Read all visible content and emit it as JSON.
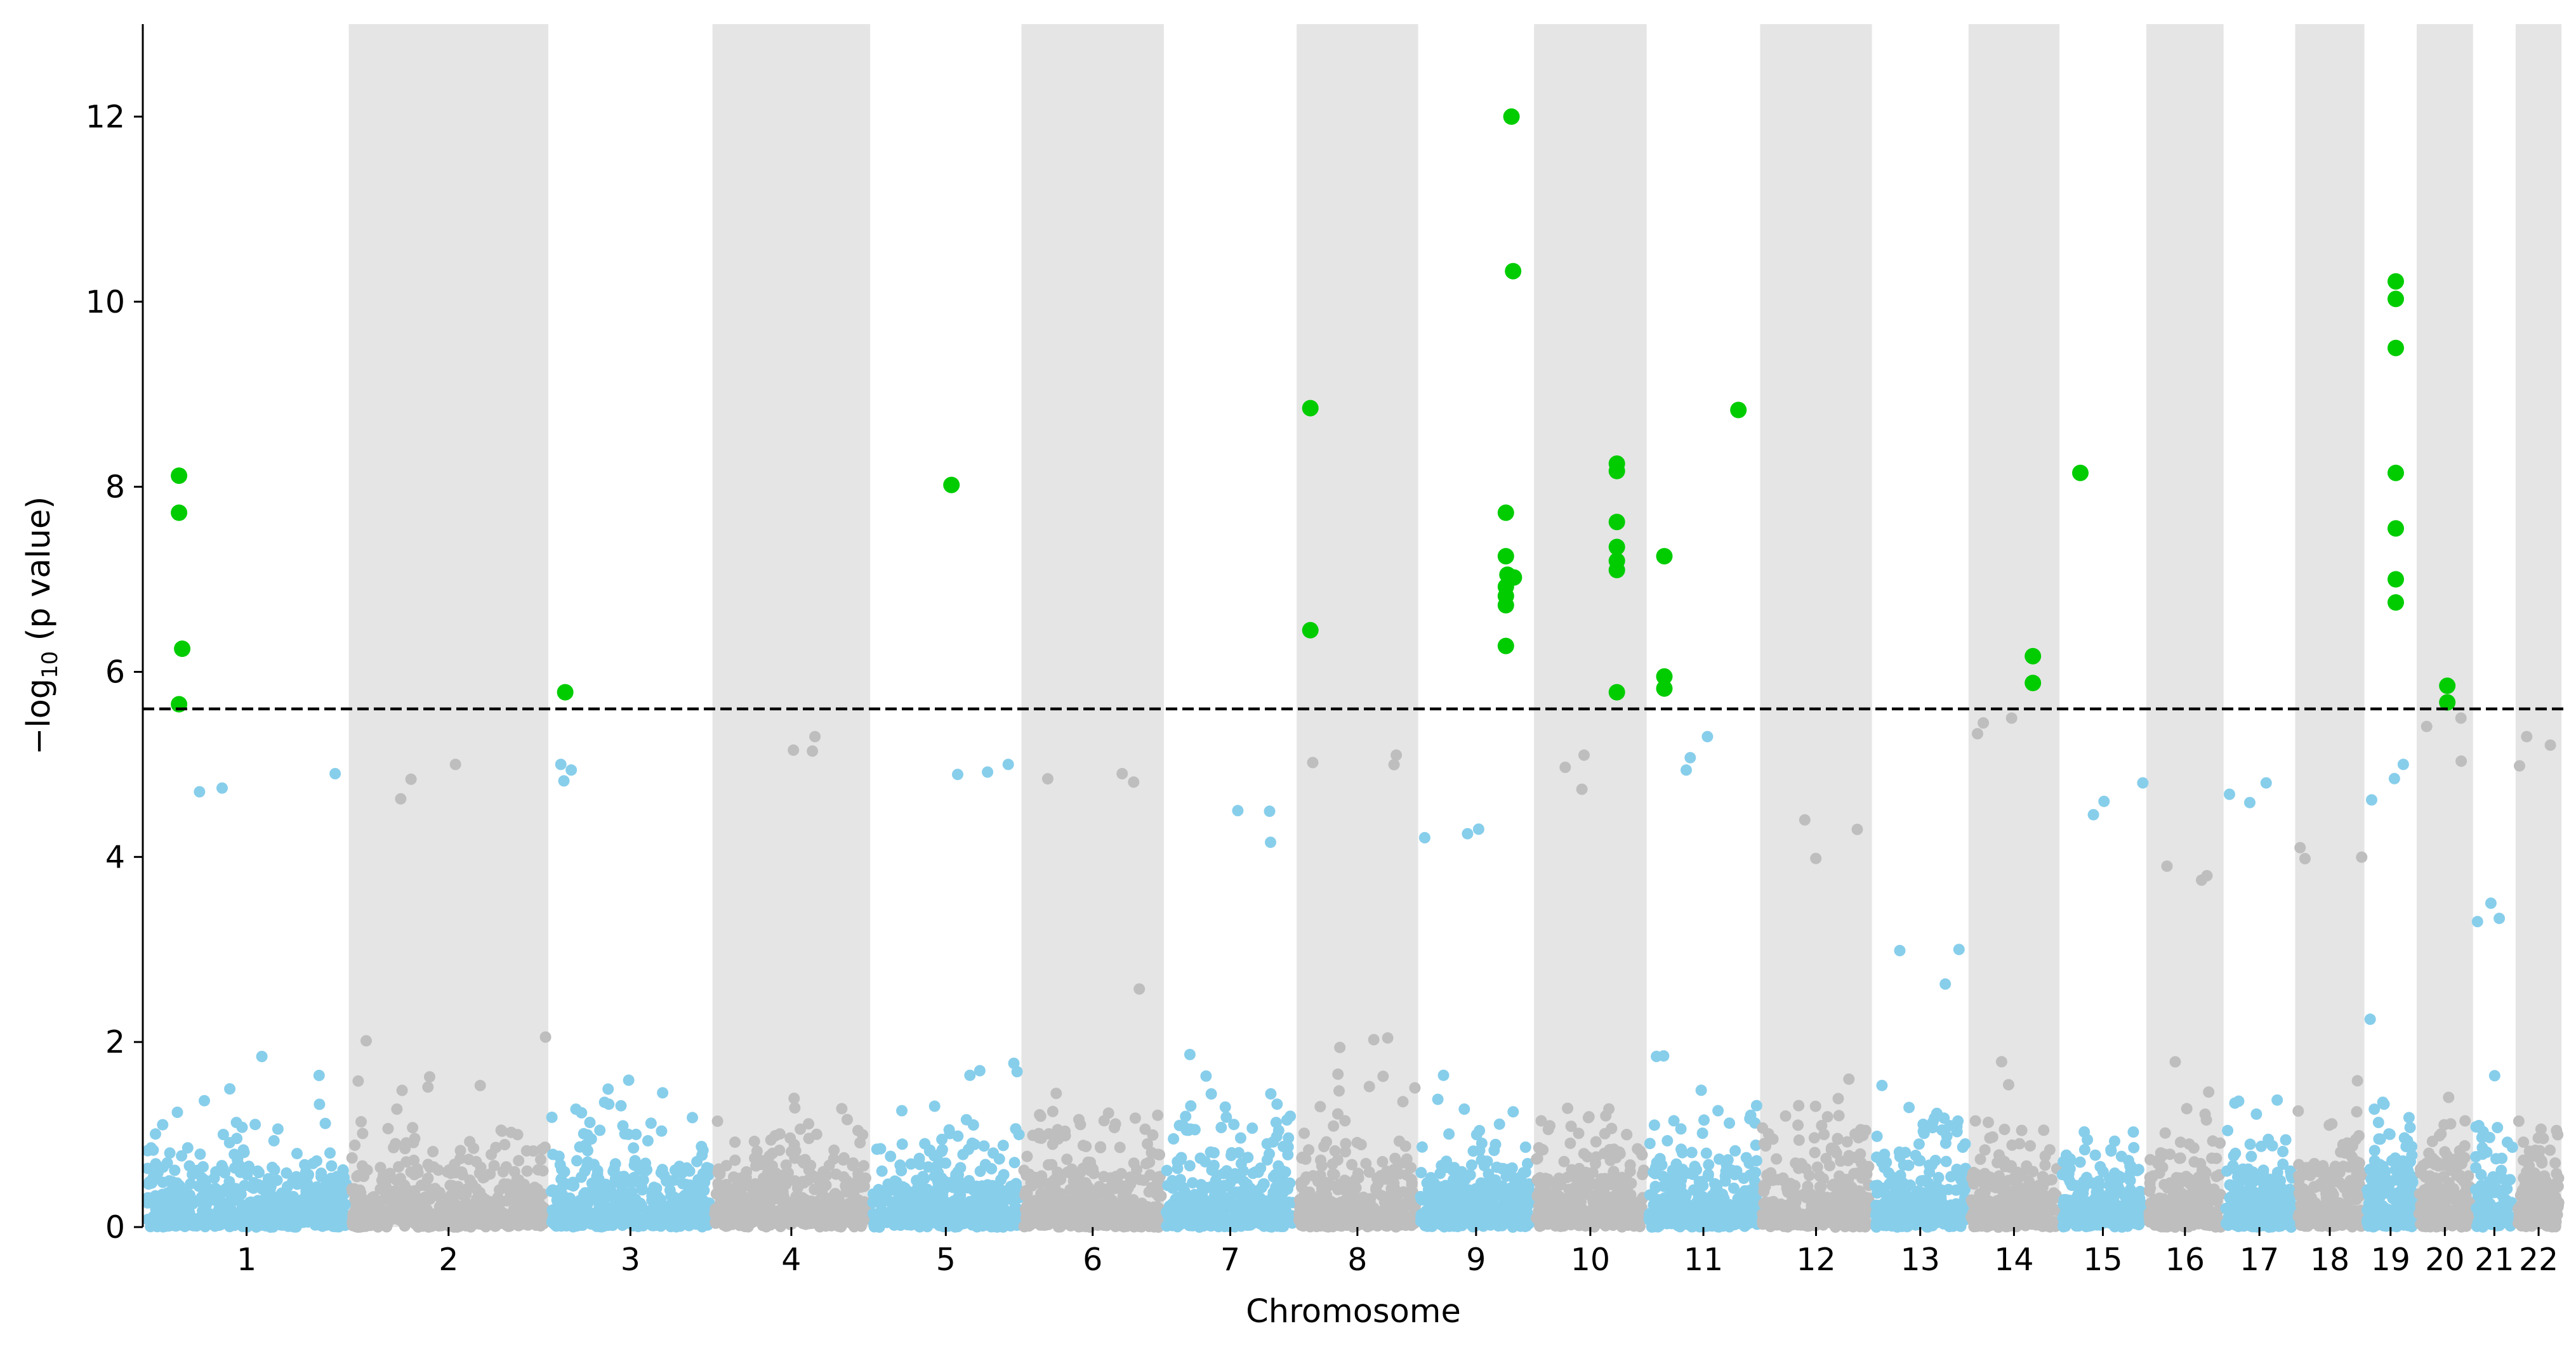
{
  "chart_data": {
    "type": "scatter",
    "subtype": "manhattan",
    "title": "",
    "xlabel": "Chromosome",
    "ylabel_main": "−log",
    "ylabel_sub": "10",
    "ylabel_tail": " (p value)",
    "ylim": [
      0,
      13
    ],
    "yticks": [
      0,
      2,
      4,
      6,
      8,
      10,
      12
    ],
    "threshold": 5.6,
    "grid": false,
    "legend": "none",
    "colors": {
      "odd_chromosome": "#87ceeb",
      "even_chromosome": "#bebebe",
      "shade": "#e5e5e5",
      "significant": "#00cc00",
      "threshold_line": "#000000"
    },
    "chromosomes": [
      {
        "label": "1",
        "start": 0,
        "end": 248
      },
      {
        "label": "2",
        "start": 254,
        "end": 496
      },
      {
        "label": "3",
        "start": 502,
        "end": 700
      },
      {
        "label": "4",
        "start": 706,
        "end": 896
      },
      {
        "label": "5",
        "start": 902,
        "end": 1084
      },
      {
        "label": "6",
        "start": 1090,
        "end": 1261
      },
      {
        "label": "7",
        "start": 1267,
        "end": 1426
      },
      {
        "label": "8",
        "start": 1432,
        "end": 1577
      },
      {
        "label": "9",
        "start": 1583,
        "end": 1721
      },
      {
        "label": "10",
        "start": 1727,
        "end": 1861
      },
      {
        "label": "11",
        "start": 1867,
        "end": 2002
      },
      {
        "label": "12",
        "start": 2008,
        "end": 2141
      },
      {
        "label": "13",
        "start": 2147,
        "end": 2261
      },
      {
        "label": "14",
        "start": 2267,
        "end": 2374
      },
      {
        "label": "15",
        "start": 2380,
        "end": 2482
      },
      {
        "label": "16",
        "start": 2488,
        "end": 2578
      },
      {
        "label": "17",
        "start": 2584,
        "end": 2667
      },
      {
        "label": "18",
        "start": 2673,
        "end": 2753
      },
      {
        "label": "19",
        "start": 2759,
        "end": 2818
      },
      {
        "label": "20",
        "start": 2824,
        "end": 2888
      },
      {
        "label": "21",
        "start": 2894,
        "end": 2941
      },
      {
        "label": "22",
        "start": 2947,
        "end": 2998
      }
    ],
    "x_range": [
      -5,
      3004
    ],
    "points_per_chromosome": [
      520,
      480,
      430,
      420,
      440,
      420,
      380,
      360,
      340,
      340,
      360,
      330,
      270,
      270,
      250,
      240,
      250,
      220,
      230,
      210,
      130,
      170
    ],
    "max_nonsignificant": [
      4.9,
      5.0,
      5.0,
      5.3,
      5.0,
      4.9,
      4.5,
      5.1,
      4.3,
      5.1,
      5.3,
      4.4,
      3.0,
      5.5,
      4.8,
      3.9,
      4.8,
      4.1,
      5.0,
      5.5,
      3.5,
      5.3
    ],
    "significant_points": [
      {
        "x": 40,
        "y": 8.12
      },
      {
        "x": 40,
        "y": 7.72
      },
      {
        "x": 44,
        "y": 6.25
      },
      {
        "x": 40,
        "y": 5.65
      },
      {
        "x": 520,
        "y": 5.78
      },
      {
        "x": 1000,
        "y": 8.02
      },
      {
        "x": 1446,
        "y": 8.85
      },
      {
        "x": 1446,
        "y": 6.45
      },
      {
        "x": 1696,
        "y": 12.0
      },
      {
        "x": 1698,
        "y": 10.33
      },
      {
        "x": 1689,
        "y": 7.72
      },
      {
        "x": 1689,
        "y": 7.25
      },
      {
        "x": 1691,
        "y": 7.05
      },
      {
        "x": 1699,
        "y": 7.02
      },
      {
        "x": 1689,
        "y": 6.92
      },
      {
        "x": 1689,
        "y": 6.82
      },
      {
        "x": 1689,
        "y": 6.72
      },
      {
        "x": 1689,
        "y": 6.28
      },
      {
        "x": 1827,
        "y": 8.25
      },
      {
        "x": 1827,
        "y": 8.17
      },
      {
        "x": 1827,
        "y": 7.62
      },
      {
        "x": 1827,
        "y": 7.35
      },
      {
        "x": 1827,
        "y": 7.2
      },
      {
        "x": 1827,
        "y": 7.1
      },
      {
        "x": 1827,
        "y": 5.78
      },
      {
        "x": 1886,
        "y": 7.25
      },
      {
        "x": 1886,
        "y": 5.95
      },
      {
        "x": 1886,
        "y": 5.82
      },
      {
        "x": 1978,
        "y": 8.83
      },
      {
        "x": 2344,
        "y": 6.17
      },
      {
        "x": 2344,
        "y": 5.88
      },
      {
        "x": 2403,
        "y": 8.15
      },
      {
        "x": 2795,
        "y": 10.22
      },
      {
        "x": 2795,
        "y": 10.03
      },
      {
        "x": 2795,
        "y": 9.5
      },
      {
        "x": 2795,
        "y": 8.15
      },
      {
        "x": 2795,
        "y": 7.55
      },
      {
        "x": 2795,
        "y": 7.0
      },
      {
        "x": 2795,
        "y": 6.75
      },
      {
        "x": 2859,
        "y": 5.85
      },
      {
        "x": 2859,
        "y": 5.67
      }
    ]
  }
}
